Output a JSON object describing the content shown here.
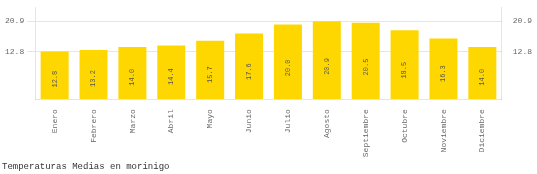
{
  "chart_data": {
    "type": "bar",
    "title": "Temperaturas Medias en morinigo",
    "categories": [
      "Enero",
      "Febrero",
      "Marzo",
      "Abril",
      "Mayo",
      "Junio",
      "Julio",
      "Agosto",
      "Septiembre",
      "Octubre",
      "Noviembre",
      "Diciembre"
    ],
    "values": [
      12.8,
      13.2,
      14.0,
      14.4,
      15.7,
      17.6,
      20.0,
      20.9,
      20.5,
      18.5,
      16.3,
      14.0
    ],
    "value_labels": [
      "12.8",
      "13.2",
      "14.0",
      "14.4",
      "15.7",
      "17.6",
      "20.0",
      "20.9",
      "20.5",
      "18.5",
      "16.3",
      "14.0"
    ],
    "color": "#FFD700",
    "ylim": [
      0.0,
      24.5
    ],
    "yticks": [
      12.8,
      20.9
    ],
    "y2lim": [
      0.0,
      24.5
    ],
    "y2ticks": [
      12.8,
      20.9
    ],
    "grid": true,
    "data_labels": true
  }
}
